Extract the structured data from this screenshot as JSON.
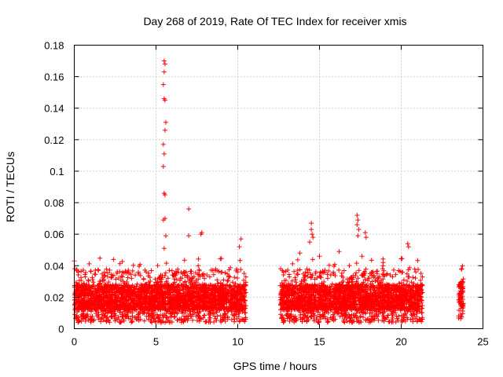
{
  "chart_data": {
    "type": "scatter",
    "title": "Day 268 of 2019, Rate Of TEC Index for receiver xmis",
    "xlabel": "GPS time / hours",
    "ylabel": "ROTI / TECUs",
    "xlim": [
      0,
      25
    ],
    "ylim": [
      0,
      0.18
    ],
    "x_ticks": [
      0,
      5,
      10,
      15,
      20,
      25
    ],
    "x_tick_labels": [
      "0",
      "5",
      "10",
      "15",
      "20",
      "25"
    ],
    "y_ticks": [
      0,
      0.02,
      0.04,
      0.06,
      0.08,
      0.1,
      0.12,
      0.14,
      0.16,
      0.18
    ],
    "y_tick_labels": [
      "0",
      "0.02",
      "0.04",
      "0.06",
      "0.08",
      "0.1",
      "0.12",
      "0.14",
      "0.16",
      "0.18"
    ],
    "grid": true,
    "marker": "+",
    "color": "#ff0000",
    "segments": [
      {
        "x_start": 0.0,
        "x_end": 10.5,
        "typical_min": 0.004,
        "typical_max": 0.045
      },
      {
        "x_start": 12.6,
        "x_end": 21.3,
        "typical_min": 0.004,
        "typical_max": 0.045
      },
      {
        "x_start": 23.5,
        "x_end": 23.8,
        "typical_min": 0.006,
        "typical_max": 0.038
      }
    ],
    "outliers": [
      {
        "x": 5.5,
        "y": 0.17
      },
      {
        "x": 5.55,
        "y": 0.168
      },
      {
        "x": 5.5,
        "y": 0.163
      },
      {
        "x": 5.45,
        "y": 0.155
      },
      {
        "x": 5.5,
        "y": 0.146
      },
      {
        "x": 5.55,
        "y": 0.145
      },
      {
        "x": 5.6,
        "y": 0.131
      },
      {
        "x": 5.55,
        "y": 0.126
      },
      {
        "x": 5.45,
        "y": 0.117
      },
      {
        "x": 5.5,
        "y": 0.111
      },
      {
        "x": 5.45,
        "y": 0.103
      },
      {
        "x": 5.5,
        "y": 0.086
      },
      {
        "x": 5.55,
        "y": 0.085
      },
      {
        "x": 5.45,
        "y": 0.069
      },
      {
        "x": 5.55,
        "y": 0.07
      },
      {
        "x": 5.6,
        "y": 0.059
      },
      {
        "x": 5.5,
        "y": 0.051
      },
      {
        "x": 7.0,
        "y": 0.076
      },
      {
        "x": 7.0,
        "y": 0.059
      },
      {
        "x": 7.8,
        "y": 0.061
      },
      {
        "x": 7.75,
        "y": 0.06
      },
      {
        "x": 10.2,
        "y": 0.057
      },
      {
        "x": 10.1,
        "y": 0.052
      },
      {
        "x": 14.5,
        "y": 0.067
      },
      {
        "x": 14.5,
        "y": 0.063
      },
      {
        "x": 14.55,
        "y": 0.06
      },
      {
        "x": 14.6,
        "y": 0.058
      },
      {
        "x": 14.4,
        "y": 0.055
      },
      {
        "x": 17.3,
        "y": 0.072
      },
      {
        "x": 17.35,
        "y": 0.069
      },
      {
        "x": 17.3,
        "y": 0.066
      },
      {
        "x": 17.4,
        "y": 0.063
      },
      {
        "x": 17.35,
        "y": 0.059
      },
      {
        "x": 17.8,
        "y": 0.061
      },
      {
        "x": 17.85,
        "y": 0.058
      },
      {
        "x": 17.6,
        "y": 0.046
      },
      {
        "x": 20.4,
        "y": 0.054
      },
      {
        "x": 20.45,
        "y": 0.052
      },
      {
        "x": 0.0,
        "y": 0.043
      },
      {
        "x": 13.8,
        "y": 0.048
      },
      {
        "x": 16.2,
        "y": 0.049
      },
      {
        "x": 15.0,
        "y": 0.046
      },
      {
        "x": 18.9,
        "y": 0.042
      },
      {
        "x": 23.7,
        "y": 0.038
      }
    ]
  }
}
